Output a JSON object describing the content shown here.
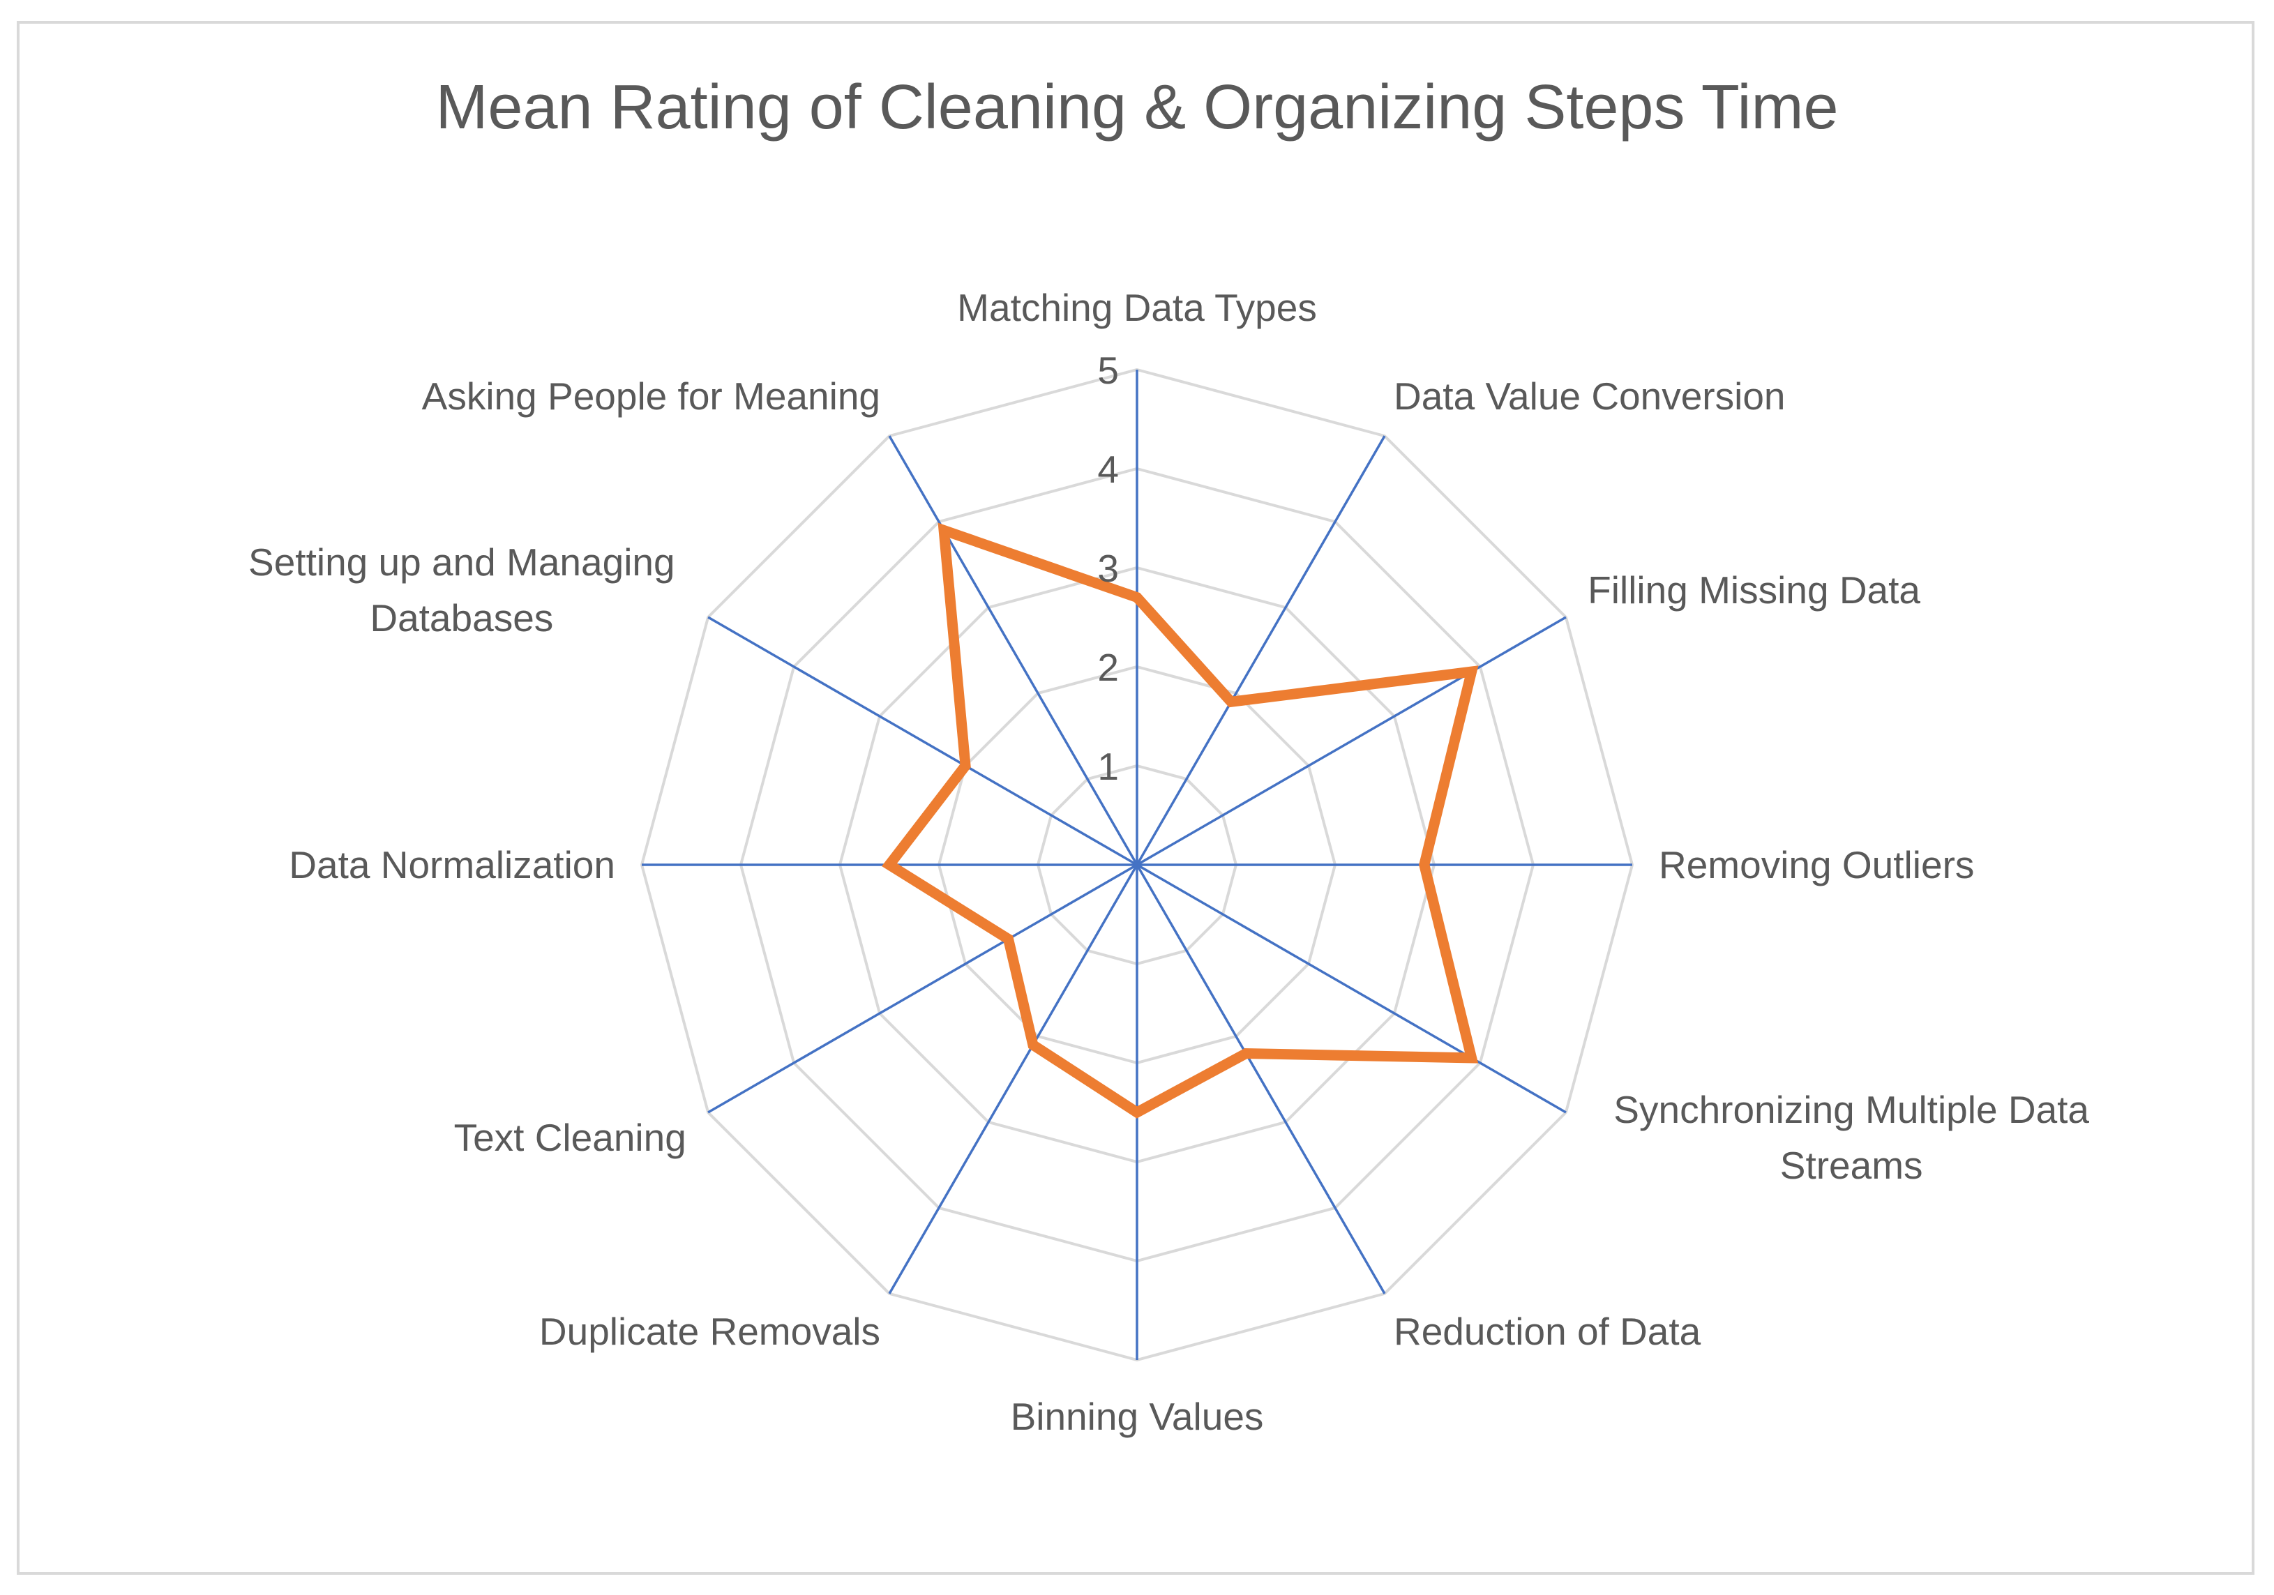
{
  "chart_data": {
    "type": "radar",
    "title": "Mean Rating of Cleaning & Organizing Steps Time",
    "categories": [
      [
        "Matching Data Types"
      ],
      [
        "Data Value Conversion"
      ],
      [
        "Filling Missing Data"
      ],
      [
        "Removing Outliers"
      ],
      [
        "Synchronizing Multiple Data",
        "Streams"
      ],
      [
        "Reduction of Data"
      ],
      [
        "Binning Values"
      ],
      [
        "Duplicate Removals"
      ],
      [
        "Text Cleaning"
      ],
      [
        "Data Normalization"
      ],
      [
        "Setting up and Managing",
        "Databases"
      ],
      [
        "Asking People for Meaning"
      ]
    ],
    "series": [
      {
        "values": [
          2.7,
          1.9,
          3.9,
          2.9,
          3.9,
          2.2,
          2.5,
          2.1,
          1.5,
          2.5,
          2.0,
          3.9
        ]
      }
    ],
    "axis_ticks": [
      "1",
      "2",
      "3",
      "4",
      "5"
    ],
    "rlim": [
      0,
      5
    ],
    "grid": true,
    "legend": "none",
    "colors": {
      "series": "#ed7d31",
      "spokes": "#4472c4",
      "gridlines": "#d9d9d9",
      "text": "#595959"
    }
  }
}
